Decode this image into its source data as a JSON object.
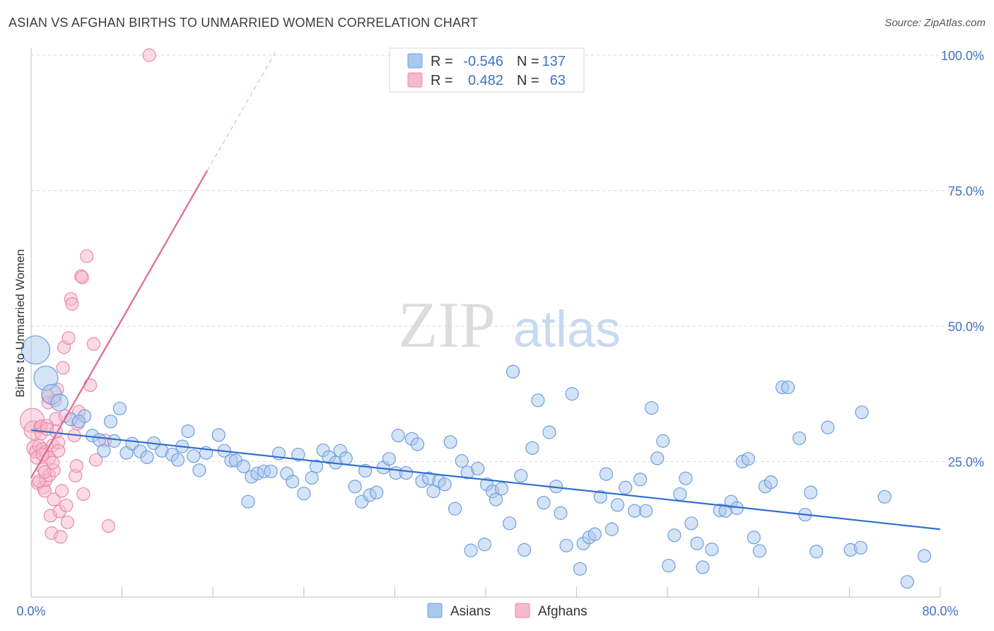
{
  "title": "ASIAN VS AFGHAN BIRTHS TO UNMARRIED WOMEN CORRELATION CHART",
  "source": "Source: ZipAtlas.com",
  "watermark": {
    "zip": "ZIP",
    "atlas": "atlas"
  },
  "colors": {
    "asians_fill": "#a9c8ee",
    "asians_stroke": "#6f9fdb",
    "asians_line": "#2f6fcf",
    "afghans_fill": "#f6b8cb",
    "afghans_stroke": "#e98aa9",
    "afghans_line": "#e06690",
    "tick_text": "#3d73c4",
    "grid": "#d9d9d9"
  },
  "legend": {
    "rows": [
      {
        "r_label": "R =",
        "r_value": "-0.546",
        "n_label": "N =",
        "n_value": "137"
      },
      {
        "r_label": "R =",
        "r_value": "0.482",
        "n_label": "N =",
        "n_value": "63"
      }
    ]
  },
  "chart_data": {
    "type": "scatter",
    "title": "ASIAN VS AFGHAN BIRTHS TO UNMARRIED WOMEN CORRELATION CHART",
    "xlabel": "",
    "ylabel": "Births to Unmarried Women",
    "xlim": [
      0,
      80
    ],
    "ylim": [
      0,
      100
    ],
    "x_tick_labels": [
      "0.0%",
      "80.0%"
    ],
    "y_tick_labels": [
      "25.0%",
      "50.0%",
      "75.0%",
      "100.0%"
    ],
    "y_ticks": [
      25,
      50,
      75,
      100
    ],
    "grid": true,
    "legend_position": "top-center",
    "series": [
      {
        "name": "Asians",
        "color": "#a9c8ee",
        "r": -0.546,
        "n": 137,
        "trend": {
          "x": [
            0,
            80
          ],
          "y": [
            30.8,
            12.5
          ]
        },
        "points": [
          [
            0.4,
            45.6
          ],
          [
            1.3,
            40.4
          ],
          [
            1.8,
            37.4
          ],
          [
            2.5,
            35.9
          ],
          [
            4.7,
            33.4
          ],
          [
            3.5,
            32.8
          ],
          [
            4.2,
            32.4
          ],
          [
            7.0,
            32.4
          ],
          [
            7.8,
            34.8
          ],
          [
            5.4,
            29.8
          ],
          [
            6.0,
            29.0
          ],
          [
            7.3,
            28.8
          ],
          [
            6.4,
            27.0
          ],
          [
            8.4,
            26.6
          ],
          [
            8.9,
            28.3
          ],
          [
            9.6,
            26.9
          ],
          [
            10.2,
            25.8
          ],
          [
            10.8,
            28.4
          ],
          [
            11.5,
            27.0
          ],
          [
            12.4,
            26.3
          ],
          [
            12.9,
            25.3
          ],
          [
            13.3,
            27.8
          ],
          [
            14.3,
            26.0
          ],
          [
            13.8,
            30.6
          ],
          [
            14.8,
            23.4
          ],
          [
            16.5,
            29.9
          ],
          [
            17.0,
            27.0
          ],
          [
            15.4,
            26.6
          ],
          [
            17.6,
            25.2
          ],
          [
            18.0,
            25.2
          ],
          [
            18.7,
            24.1
          ],
          [
            19.1,
            17.6
          ],
          [
            19.4,
            22.2
          ],
          [
            19.9,
            22.8
          ],
          [
            20.5,
            23.2
          ],
          [
            21.1,
            23.2
          ],
          [
            21.8,
            26.5
          ],
          [
            22.5,
            22.8
          ],
          [
            23.0,
            21.3
          ],
          [
            23.5,
            26.3
          ],
          [
            24.0,
            19.1
          ],
          [
            24.7,
            22.0
          ],
          [
            25.1,
            24.1
          ],
          [
            25.7,
            27.1
          ],
          [
            26.2,
            25.8
          ],
          [
            26.8,
            24.8
          ],
          [
            27.2,
            27.0
          ],
          [
            27.7,
            25.6
          ],
          [
            28.5,
            20.4
          ],
          [
            29.1,
            17.6
          ],
          [
            29.4,
            23.3
          ],
          [
            29.8,
            18.8
          ],
          [
            30.4,
            19.3
          ],
          [
            31.0,
            23.9
          ],
          [
            31.5,
            25.5
          ],
          [
            32.1,
            22.9
          ],
          [
            32.3,
            29.8
          ],
          [
            33.0,
            22.9
          ],
          [
            33.5,
            29.2
          ],
          [
            34.0,
            28.2
          ],
          [
            34.4,
            21.4
          ],
          [
            35.0,
            21.9
          ],
          [
            35.4,
            19.5
          ],
          [
            35.9,
            21.4
          ],
          [
            36.4,
            20.8
          ],
          [
            36.9,
            28.6
          ],
          [
            37.3,
            16.3
          ],
          [
            37.9,
            25.1
          ],
          [
            38.4,
            23.0
          ],
          [
            38.7,
            8.6
          ],
          [
            39.3,
            23.7
          ],
          [
            40.1,
            20.8
          ],
          [
            40.6,
            19.5
          ],
          [
            40.9,
            18.0
          ],
          [
            41.4,
            20.0
          ],
          [
            39.9,
            9.7
          ],
          [
            42.1,
            13.6
          ],
          [
            42.4,
            41.6
          ],
          [
            43.1,
            22.4
          ],
          [
            43.4,
            8.7
          ],
          [
            44.1,
            27.5
          ],
          [
            44.6,
            36.3
          ],
          [
            45.1,
            17.4
          ],
          [
            45.6,
            30.4
          ],
          [
            46.2,
            20.4
          ],
          [
            46.6,
            15.5
          ],
          [
            47.1,
            9.5
          ],
          [
            47.6,
            37.5
          ],
          [
            48.3,
            5.2
          ],
          [
            48.6,
            9.9
          ],
          [
            49.1,
            11.0
          ],
          [
            49.6,
            11.6
          ],
          [
            50.1,
            18.5
          ],
          [
            50.6,
            22.7
          ],
          [
            51.1,
            12.5
          ],
          [
            51.6,
            17.0
          ],
          [
            52.3,
            20.2
          ],
          [
            53.1,
            15.9
          ],
          [
            53.6,
            21.7
          ],
          [
            54.1,
            15.9
          ],
          [
            54.6,
            34.9
          ],
          [
            55.1,
            25.6
          ],
          [
            55.6,
            28.8
          ],
          [
            56.1,
            5.8
          ],
          [
            56.6,
            11.4
          ],
          [
            57.1,
            19.0
          ],
          [
            57.6,
            21.9
          ],
          [
            58.1,
            13.6
          ],
          [
            58.6,
            9.9
          ],
          [
            59.1,
            5.5
          ],
          [
            59.9,
            8.8
          ],
          [
            60.6,
            16.0
          ],
          [
            61.1,
            15.9
          ],
          [
            61.6,
            17.6
          ],
          [
            62.1,
            16.4
          ],
          [
            62.6,
            25.0
          ],
          [
            63.1,
            25.5
          ],
          [
            63.6,
            11.0
          ],
          [
            64.1,
            8.5
          ],
          [
            64.6,
            20.4
          ],
          [
            65.1,
            21.2
          ],
          [
            66.1,
            38.7
          ],
          [
            66.6,
            38.7
          ],
          [
            67.6,
            29.3
          ],
          [
            68.1,
            15.2
          ],
          [
            68.6,
            19.3
          ],
          [
            69.1,
            8.4
          ],
          [
            70.1,
            31.3
          ],
          [
            72.1,
            8.7
          ],
          [
            73.1,
            34.1
          ],
          [
            73.0,
            9.1
          ],
          [
            75.1,
            18.5
          ],
          [
            77.1,
            2.8
          ],
          [
            78.6,
            7.6
          ]
        ]
      },
      {
        "name": "Afghans",
        "color": "#f6b8cb",
        "r": 0.482,
        "n": 63,
        "trend": {
          "x": [
            0,
            15.5
          ],
          "y": [
            22.0,
            78.7
          ]
        },
        "points": [
          [
            0.1,
            32.6
          ],
          [
            0.2,
            30.8
          ],
          [
            0.3,
            27.5
          ],
          [
            0.4,
            26.8
          ],
          [
            0.5,
            25.7
          ],
          [
            0.6,
            21.0
          ],
          [
            0.7,
            27.9
          ],
          [
            0.8,
            31.4
          ],
          [
            0.9,
            31.5
          ],
          [
            0.9,
            30.2
          ],
          [
            1.0,
            27.3
          ],
          [
            1.1,
            23.6
          ],
          [
            1.1,
            20.2
          ],
          [
            1.2,
            19.6
          ],
          [
            1.3,
            21.6
          ],
          [
            1.3,
            26.8
          ],
          [
            1.4,
            31.6
          ],
          [
            1.5,
            35.9
          ],
          [
            1.5,
            37.0
          ],
          [
            1.6,
            25.7
          ],
          [
            1.6,
            22.5
          ],
          [
            1.7,
            15.0
          ],
          [
            1.8,
            11.8
          ],
          [
            1.9,
            28.0
          ],
          [
            2.0,
            23.4
          ],
          [
            2.0,
            18.0
          ],
          [
            2.1,
            36.3
          ],
          [
            2.2,
            32.9
          ],
          [
            2.3,
            38.3
          ],
          [
            2.4,
            28.5
          ],
          [
            2.4,
            27.0
          ],
          [
            2.5,
            15.8
          ],
          [
            2.6,
            11.1
          ],
          [
            2.7,
            19.6
          ],
          [
            2.8,
            42.3
          ],
          [
            2.9,
            46.1
          ],
          [
            3.0,
            33.4
          ],
          [
            3.1,
            16.9
          ],
          [
            3.2,
            13.8
          ],
          [
            3.3,
            47.8
          ],
          [
            3.5,
            55.0
          ],
          [
            3.6,
            54.1
          ],
          [
            3.8,
            29.8
          ],
          [
            3.9,
            22.4
          ],
          [
            4.0,
            24.2
          ],
          [
            4.1,
            32.0
          ],
          [
            4.2,
            34.2
          ],
          [
            4.4,
            59.2
          ],
          [
            4.5,
            59.0
          ],
          [
            4.6,
            19.0
          ],
          [
            4.9,
            62.9
          ],
          [
            5.2,
            39.1
          ],
          [
            5.5,
            46.7
          ],
          [
            5.7,
            25.3
          ],
          [
            6.5,
            28.9
          ],
          [
            6.8,
            13.1
          ],
          [
            10.4,
            100.0
          ],
          [
            0.7,
            21.4
          ],
          [
            1.0,
            26.3
          ],
          [
            1.2,
            23.1
          ],
          [
            1.4,
            31.0
          ],
          [
            1.9,
            24.8
          ],
          [
            2.2,
            30.5
          ]
        ]
      }
    ]
  },
  "bottom_legend": {
    "asians": "Asians",
    "afghans": "Afghans"
  }
}
